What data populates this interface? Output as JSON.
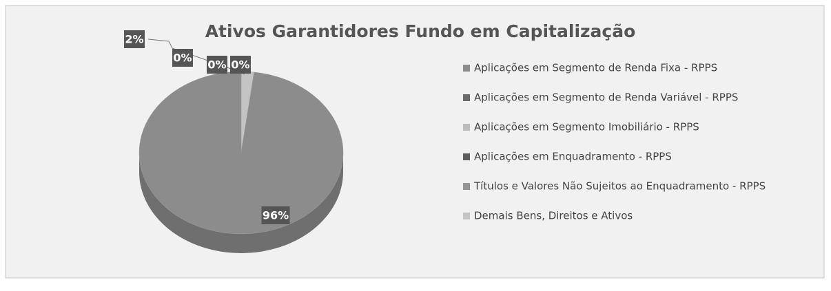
{
  "chart_data": {
    "type": "pie",
    "title": "Ativos Garantidores Fundo em Capitalização",
    "categories": [
      "Aplicações em Segmento de Renda Fixa - RPPS",
      "Aplicações em Segmento de Renda Variável - RPPS",
      "Aplicações em Segmento Imobiliário - RPPS",
      "Aplicações em Enquadramento - RPPS",
      "Títulos e Valores Não Sujeitos ao Enquadramento - RPPS",
      "Demais Bens, Direitos e Ativos"
    ],
    "values": [
      96,
      0,
      0,
      0,
      0,
      2
    ],
    "value_labels": [
      "96%",
      "0%",
      "0%",
      "0%",
      null,
      "2%"
    ],
    "colors": [
      "#8c8c8c",
      "#6a6a6a",
      "#bcbcbc",
      "#5c5c5c",
      "#959595",
      "#c4c4c4"
    ],
    "legend": "right"
  }
}
